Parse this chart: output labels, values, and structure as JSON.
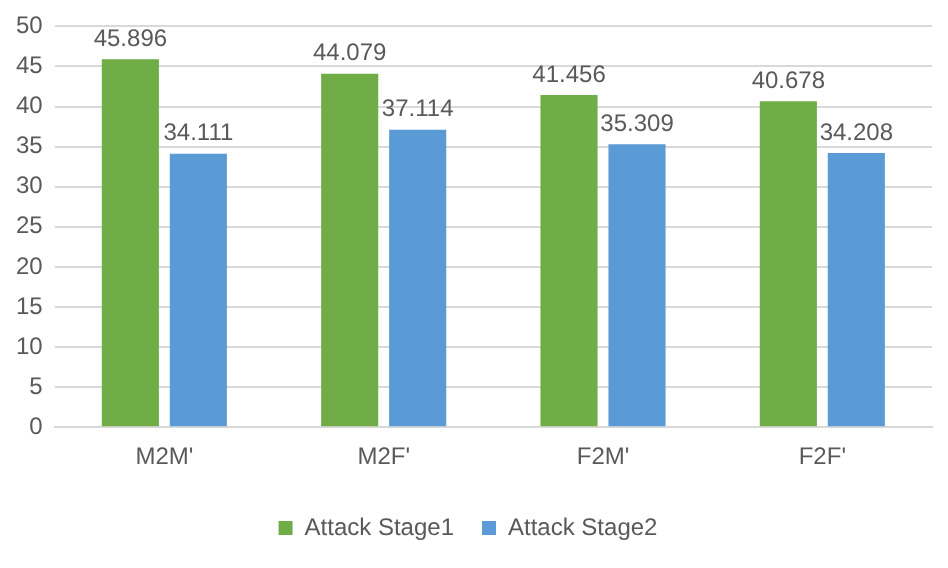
{
  "chart_data": {
    "type": "bar",
    "categories": [
      "M2M'",
      "M2F'",
      "F2M'",
      "F2F'"
    ],
    "series": [
      {
        "name": "Attack Stage1",
        "color": "#70ad47",
        "values": [
          45.896,
          44.079,
          41.456,
          40.678
        ]
      },
      {
        "name": "Attack Stage2",
        "color": "#5b9bd5",
        "values": [
          34.111,
          37.114,
          35.309,
          34.208
        ]
      }
    ],
    "ylim": [
      0,
      50
    ],
    "yticks": [
      0,
      5,
      10,
      15,
      20,
      25,
      30,
      35,
      40,
      45,
      50
    ],
    "grid": "y",
    "legend": "bottom",
    "data_labels": true
  }
}
